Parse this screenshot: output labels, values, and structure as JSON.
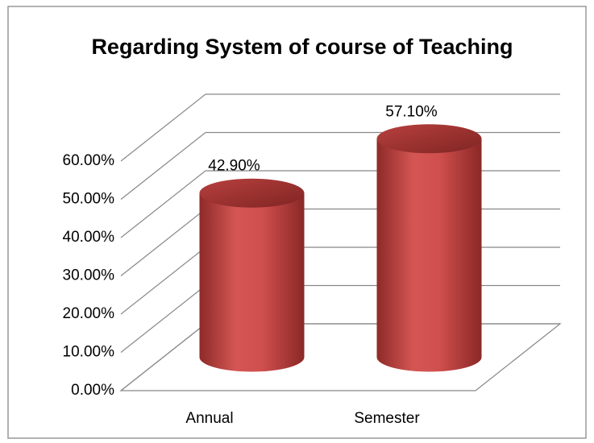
{
  "chart_data": {
    "type": "bar3d-cylinder",
    "title": "Regarding System of course of Teaching",
    "categories": [
      "Annual",
      "Semester"
    ],
    "values": [
      42.9,
      57.1
    ],
    "value_labels": [
      "42.90%",
      "57.10%"
    ],
    "color": "#c0403f",
    "ylim": [
      0,
      60
    ],
    "yticks": [
      {
        "value": 0,
        "label": "0.00%"
      },
      {
        "value": 10,
        "label": "10.00%"
      },
      {
        "value": 20,
        "label": "20.00%"
      },
      {
        "value": 30,
        "label": "30.00%"
      },
      {
        "value": 40,
        "label": "40.00%"
      },
      {
        "value": 50,
        "label": "50.00%"
      },
      {
        "value": 60,
        "label": "60.00%"
      }
    ],
    "grid": true
  }
}
